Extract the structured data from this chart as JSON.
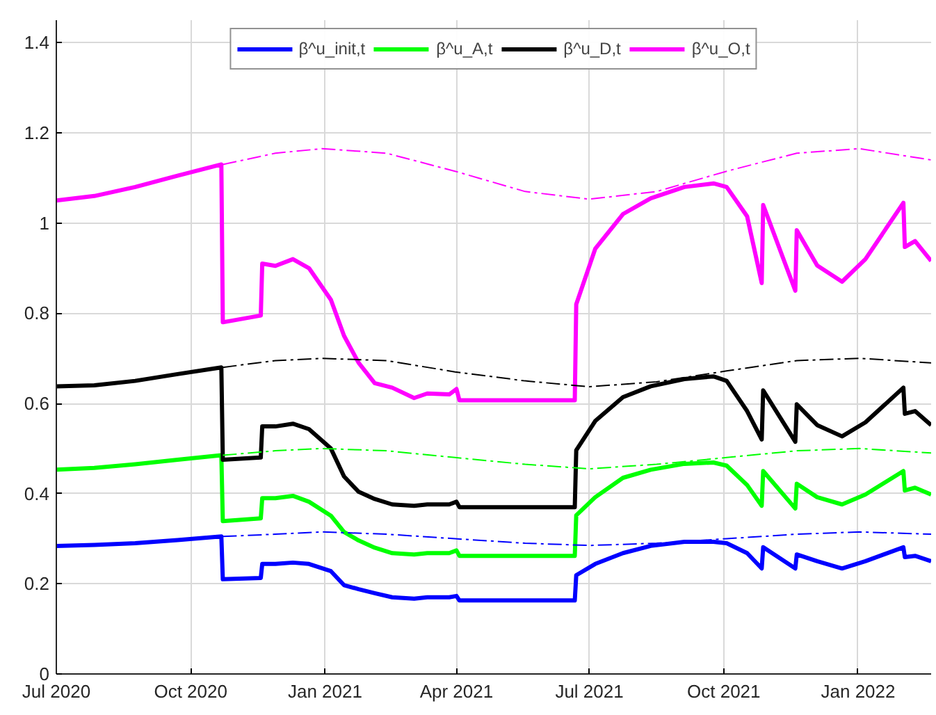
{
  "chart_data": {
    "type": "line",
    "xlim": [
      "2020-07-01",
      "2022-02-20"
    ],
    "ylim": [
      0,
      1.45
    ],
    "xticks": [
      {
        "value": "2020-07-01",
        "label": "Jul 2020"
      },
      {
        "value": "2020-10-01",
        "label": "Oct 2020"
      },
      {
        "value": "2021-01-01",
        "label": "Jan 2021"
      },
      {
        "value": "2021-04-01",
        "label": "Apr 2021"
      },
      {
        "value": "2021-07-01",
        "label": "Jul 2021"
      },
      {
        "value": "2021-10-01",
        "label": "Oct 2021"
      },
      {
        "value": "2022-01-01",
        "label": "Jan 2022"
      }
    ],
    "yticks": [
      0,
      0.2,
      0.4,
      0.6,
      0.8,
      1,
      1.2,
      1.4
    ],
    "grid": true,
    "legend": "top",
    "line_style": "solid",
    "series": [
      {
        "name": "β^u_init,t",
        "color": "#0000ff",
        "x": [
          "2020-07-01",
          "2020-07-27",
          "2020-08-24",
          "2020-09-22",
          "2020-10-22",
          "2020-10-23",
          "2020-11-18",
          "2020-11-19",
          "2020-11-28",
          "2020-12-10",
          "2020-12-21",
          "2021-01-05",
          "2021-01-14",
          "2021-01-24",
          "2021-02-04",
          "2021-02-16",
          "2021-03-03",
          "2021-03-12",
          "2021-03-27",
          "2021-04-01",
          "2021-04-03",
          "2021-06-21",
          "2021-06-22",
          "2021-07-05",
          "2021-07-24",
          "2021-08-12",
          "2021-09-04",
          "2021-09-24",
          "2021-10-03",
          "2021-10-17",
          "2021-10-27",
          "2021-10-28",
          "2021-11-19",
          "2021-11-20",
          "2021-12-04",
          "2021-12-21",
          "2022-01-06",
          "2022-02-01",
          "2022-02-02",
          "2022-02-09",
          "2022-02-20"
        ],
        "values": [
          0.284,
          0.286,
          0.29,
          0.297,
          0.305,
          0.21,
          0.213,
          0.244,
          0.244,
          0.247,
          0.244,
          0.228,
          0.197,
          0.188,
          0.179,
          0.17,
          0.167,
          0.17,
          0.17,
          0.173,
          0.163,
          0.163,
          0.219,
          0.244,
          0.268,
          0.284,
          0.293,
          0.293,
          0.29,
          0.268,
          0.234,
          0.281,
          0.234,
          0.265,
          0.25,
          0.234,
          0.25,
          0.281,
          0.259,
          0.262,
          0.25
        ]
      },
      {
        "name": "β^u_A,t",
        "color": "#00ff00",
        "x": [
          "2020-07-01",
          "2020-07-27",
          "2020-08-24",
          "2020-09-22",
          "2020-10-22",
          "2020-10-23",
          "2020-11-18",
          "2020-11-19",
          "2020-11-28",
          "2020-12-10",
          "2020-12-21",
          "2021-01-05",
          "2021-01-14",
          "2021-01-24",
          "2021-02-04",
          "2021-02-16",
          "2021-03-03",
          "2021-03-12",
          "2021-03-27",
          "2021-04-01",
          "2021-04-03",
          "2021-06-21",
          "2021-06-22",
          "2021-07-05",
          "2021-07-24",
          "2021-08-12",
          "2021-09-04",
          "2021-09-24",
          "2021-10-03",
          "2021-10-17",
          "2021-10-27",
          "2021-10-28",
          "2021-11-19",
          "2021-11-20",
          "2021-12-04",
          "2021-12-21",
          "2022-01-06",
          "2022-02-01",
          "2022-02-02",
          "2022-02-09",
          "2022-02-20"
        ],
        "values": [
          0.453,
          0.457,
          0.465,
          0.475,
          0.485,
          0.339,
          0.345,
          0.39,
          0.39,
          0.395,
          0.382,
          0.351,
          0.315,
          0.296,
          0.28,
          0.268,
          0.265,
          0.268,
          0.268,
          0.274,
          0.262,
          0.262,
          0.352,
          0.392,
          0.435,
          0.453,
          0.466,
          0.469,
          0.462,
          0.419,
          0.373,
          0.45,
          0.367,
          0.422,
          0.392,
          0.376,
          0.398,
          0.45,
          0.407,
          0.413,
          0.398
        ]
      },
      {
        "name": "β^u_D,t",
        "color": "#000000",
        "x": [
          "2020-07-01",
          "2020-07-27",
          "2020-08-24",
          "2020-09-22",
          "2020-10-22",
          "2020-10-23",
          "2020-11-18",
          "2020-11-19",
          "2020-11-28",
          "2020-12-10",
          "2020-12-21",
          "2021-01-05",
          "2021-01-14",
          "2021-01-24",
          "2021-02-04",
          "2021-02-16",
          "2021-03-03",
          "2021-03-12",
          "2021-03-27",
          "2021-04-01",
          "2021-04-03",
          "2021-06-21",
          "2021-06-22",
          "2021-07-05",
          "2021-07-24",
          "2021-08-12",
          "2021-09-04",
          "2021-09-24",
          "2021-10-03",
          "2021-10-17",
          "2021-10-27",
          "2021-10-28",
          "2021-11-19",
          "2021-11-20",
          "2021-12-04",
          "2021-12-21",
          "2022-01-06",
          "2022-02-01",
          "2022-02-02",
          "2022-02-09",
          "2022-02-20"
        ],
        "values": [
          0.638,
          0.64,
          0.65,
          0.665,
          0.68,
          0.475,
          0.48,
          0.549,
          0.549,
          0.555,
          0.543,
          0.5,
          0.438,
          0.404,
          0.388,
          0.376,
          0.373,
          0.376,
          0.376,
          0.382,
          0.37,
          0.37,
          0.496,
          0.561,
          0.614,
          0.638,
          0.654,
          0.66,
          0.65,
          0.583,
          0.52,
          0.629,
          0.515,
          0.598,
          0.552,
          0.527,
          0.558,
          0.635,
          0.577,
          0.583,
          0.552
        ]
      },
      {
        "name": "β^u_O,t",
        "color": "#ff00ff",
        "x": [
          "2020-07-01",
          "2020-07-27",
          "2020-08-24",
          "2020-09-22",
          "2020-10-22",
          "2020-10-23",
          "2020-11-18",
          "2020-11-19",
          "2020-11-28",
          "2020-12-10",
          "2020-12-21",
          "2021-01-05",
          "2021-01-14",
          "2021-01-24",
          "2021-02-04",
          "2021-02-16",
          "2021-03-03",
          "2021-03-12",
          "2021-03-27",
          "2021-04-01",
          "2021-04-03",
          "2021-06-21",
          "2021-06-22",
          "2021-07-05",
          "2021-07-24",
          "2021-08-12",
          "2021-09-04",
          "2021-09-24",
          "2021-10-03",
          "2021-10-17",
          "2021-10-27",
          "2021-10-28",
          "2021-11-19",
          "2021-11-20",
          "2021-12-04",
          "2021-12-21",
          "2022-01-06",
          "2022-02-01",
          "2022-02-02",
          "2022-02-09",
          "2022-02-20"
        ],
        "values": [
          1.05,
          1.06,
          1.08,
          1.105,
          1.13,
          0.78,
          0.795,
          0.91,
          0.905,
          0.92,
          0.9,
          0.83,
          0.75,
          0.69,
          0.645,
          0.635,
          0.612,
          0.622,
          0.62,
          0.632,
          0.607,
          0.607,
          0.82,
          0.943,
          1.02,
          1.055,
          1.08,
          1.088,
          1.08,
          1.015,
          0.867,
          1.04,
          0.85,
          0.984,
          0.906,
          0.87,
          0.92,
          1.045,
          0.947,
          0.96,
          0.916
        ]
      },
      {
        "color": "#0000ff",
        "line_style": "dashed",
        "x": [
          "2020-10-23",
          "2020-11-28",
          "2020-12-30",
          "2021-02-12",
          "2021-03-31",
          "2021-05-18",
          "2021-07-01",
          "2021-08-16",
          "2021-10-03",
          "2021-11-20",
          "2022-01-02",
          "2022-02-20"
        ],
        "values": [
          0.305,
          0.31,
          0.315,
          0.31,
          0.3,
          0.29,
          0.285,
          0.29,
          0.3,
          0.31,
          0.315,
          0.31
        ]
      },
      {
        "color": "#00ff00",
        "line_style": "dashed",
        "x": [
          "2020-10-23",
          "2020-11-28",
          "2020-12-30",
          "2021-02-12",
          "2021-03-31",
          "2021-05-18",
          "2021-07-01",
          "2021-08-16",
          "2021-10-03",
          "2021-11-20",
          "2022-01-02",
          "2022-02-20"
        ],
        "values": [
          0.485,
          0.495,
          0.5,
          0.495,
          0.48,
          0.465,
          0.455,
          0.465,
          0.48,
          0.495,
          0.5,
          0.49
        ]
      },
      {
        "color": "#000000",
        "line_style": "dashed",
        "x": [
          "2020-10-23",
          "2020-11-28",
          "2020-12-30",
          "2021-02-12",
          "2021-03-31",
          "2021-05-18",
          "2021-07-01",
          "2021-08-16",
          "2021-10-03",
          "2021-11-20",
          "2022-01-02",
          "2022-02-20"
        ],
        "values": [
          0.68,
          0.695,
          0.7,
          0.695,
          0.67,
          0.65,
          0.637,
          0.648,
          0.672,
          0.695,
          0.7,
          0.69
        ]
      },
      {
        "color": "#ff00ff",
        "line_style": "dashed",
        "x": [
          "2020-10-23",
          "2020-11-28",
          "2020-12-30",
          "2021-02-12",
          "2021-03-31",
          "2021-05-18",
          "2021-07-01",
          "2021-08-16",
          "2021-10-03",
          "2021-11-20",
          "2022-01-02",
          "2022-02-20"
        ],
        "values": [
          1.13,
          1.155,
          1.165,
          1.155,
          1.115,
          1.07,
          1.053,
          1.07,
          1.115,
          1.155,
          1.165,
          1.14
        ]
      }
    ]
  }
}
